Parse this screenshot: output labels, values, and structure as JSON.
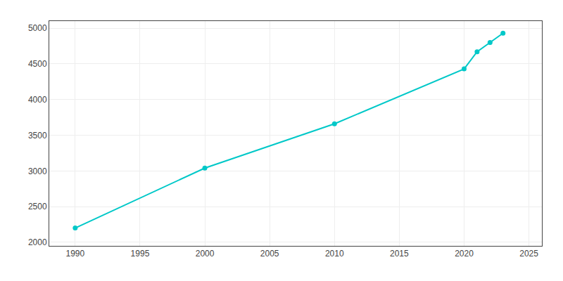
{
  "chart_data": {
    "type": "line",
    "x": [
      1990,
      2000,
      2010,
      2020,
      2021,
      2022,
      2023
    ],
    "values": [
      2200,
      3040,
      3660,
      4430,
      4670,
      4800,
      4930
    ],
    "color": "#00c8c8",
    "marker": "circle",
    "xlim": [
      1988,
      2026
    ],
    "ylim": [
      1950,
      5100
    ],
    "xticks": [
      1990,
      1995,
      2000,
      2005,
      2010,
      2015,
      2020,
      2025
    ],
    "yticks": [
      2000,
      2500,
      3000,
      3500,
      4000,
      4500,
      5000
    ],
    "grid": true
  }
}
